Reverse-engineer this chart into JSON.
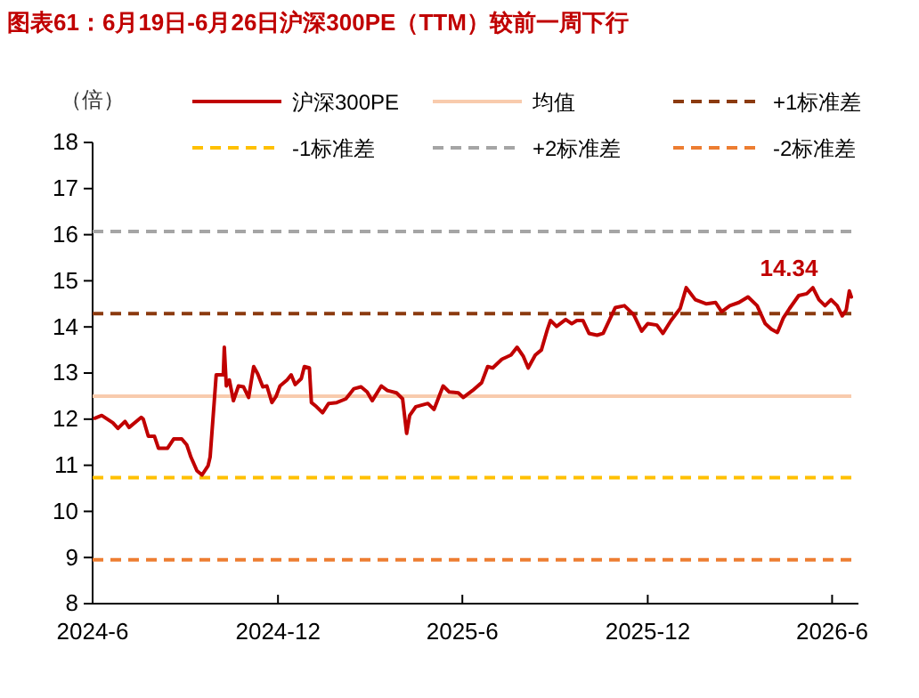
{
  "chart_data": {
    "type": "line",
    "title": "图表61：6月19日-6月26日沪深300PE（TTM）较前一周下行",
    "ylabel": "（倍）",
    "xlim": [
      "2024-06-01",
      "2026-06-27"
    ],
    "xticks": [
      {
        "value": "2024-06-01",
        "label": "2024-6"
      },
      {
        "value": "2024-12-01",
        "label": "2024-12"
      },
      {
        "value": "2025-06-01",
        "label": "2025-6"
      },
      {
        "value": "2025-12-01",
        "label": "2025-12"
      },
      {
        "value": "2026-06-01",
        "label": "2026-6"
      }
    ],
    "ylim": [
      8,
      18
    ],
    "yticks": [
      8,
      9,
      10,
      11,
      12,
      13,
      14,
      15,
      16,
      17,
      18
    ],
    "grid": false,
    "legend": "top",
    "line_style": "solid",
    "marker": "none",
    "annotations": [
      "14.34"
    ],
    "ref_lines": [
      {
        "axis": "y",
        "value": 12.5,
        "label": "均值",
        "color": "#f8cbad",
        "line_style": "solid"
      },
      {
        "axis": "y",
        "value": 14.29,
        "label": "+1标准差",
        "color": "#8b3a0f",
        "line_style": "dashed"
      },
      {
        "axis": "y",
        "value": 10.73,
        "label": "-1标准差",
        "color": "#ffc000",
        "line_style": "dashed"
      },
      {
        "axis": "y",
        "value": 16.07,
        "label": "+2标准差",
        "color": "#a5a5a5",
        "line_style": "dashed"
      },
      {
        "axis": "y",
        "value": 8.95,
        "label": "-2标准差",
        "color": "#ed7d31",
        "line_style": "dashed"
      }
    ],
    "series": [
      {
        "name": "沪深300PE",
        "color": "#c00000",
        "x": [
          "2024-06-03",
          "2024-06-10",
          "2024-06-21",
          "2024-06-26",
          "2024-07-03",
          "2024-07-07",
          "2024-07-19",
          "2024-07-21",
          "2024-07-26",
          "2024-08-01",
          "2024-08-05",
          "2024-08-14",
          "2024-08-20",
          "2024-08-28",
          "2024-09-02",
          "2024-09-06",
          "2024-09-12",
          "2024-09-17",
          "2024-09-23",
          "2024-09-25",
          "2024-09-29",
          "2024-10-01",
          "2024-10-08",
          "2024-10-09",
          "2024-10-11",
          "2024-10-14",
          "2024-10-18",
          "2024-10-23",
          "2024-10-28",
          "2024-11-02",
          "2024-11-07",
          "2024-11-11",
          "2024-11-16",
          "2024-11-20",
          "2024-11-25",
          "2024-11-29",
          "2024-12-03",
          "2024-12-10",
          "2024-12-14",
          "2024-12-18",
          "2024-12-24",
          "2024-12-27",
          "2025-01-01",
          "2025-01-03",
          "2025-01-08",
          "2025-01-14",
          "2025-01-20",
          "2025-01-28",
          "2025-02-06",
          "2025-02-14",
          "2025-02-21",
          "2025-02-27",
          "2025-03-04",
          "2025-03-13",
          "2025-03-19",
          "2025-03-28",
          "2025-04-03",
          "2025-04-07",
          "2025-04-10",
          "2025-04-16",
          "2025-04-28",
          "2025-05-04",
          "2025-05-13",
          "2025-05-19",
          "2025-05-28",
          "2025-06-02",
          "2025-06-11",
          "2025-06-20",
          "2025-06-26",
          "2025-07-01",
          "2025-07-10",
          "2025-07-19",
          "2025-07-25",
          "2025-07-31",
          "2025-08-05",
          "2025-08-12",
          "2025-08-18",
          "2025-08-24",
          "2025-08-27",
          "2025-09-02",
          "2025-09-11",
          "2025-09-17",
          "2025-09-22",
          "2025-09-28",
          "2025-10-04",
          "2025-10-12",
          "2025-10-18",
          "2025-10-24",
          "2025-10-30",
          "2025-11-08",
          "2025-11-17",
          "2025-11-25",
          "2025-12-01",
          "2025-12-10",
          "2025-12-16",
          "2025-12-24",
          "2026-01-02",
          "2026-01-08",
          "2026-01-17",
          "2026-01-28",
          "2026-02-06",
          "2026-02-12",
          "2026-02-20",
          "2026-03-01",
          "2026-03-10",
          "2026-03-19",
          "2026-03-27",
          "2026-04-02",
          "2026-04-08",
          "2026-04-14",
          "2026-04-20",
          "2026-04-29",
          "2026-05-07",
          "2026-05-13",
          "2026-05-19",
          "2026-05-25",
          "2026-05-31",
          "2026-06-06",
          "2026-06-11",
          "2026-06-15",
          "2026-06-18",
          "2026-06-20"
        ],
        "values": [
          12.02,
          12.08,
          11.92,
          11.8,
          11.95,
          11.82,
          12.04,
          12.0,
          11.63,
          11.63,
          11.37,
          11.37,
          11.57,
          11.57,
          11.44,
          11.18,
          10.88,
          10.79,
          10.99,
          11.18,
          12.36,
          12.96,
          12.96,
          13.56,
          12.72,
          12.85,
          12.4,
          12.72,
          12.7,
          12.47,
          13.14,
          12.98,
          12.7,
          12.72,
          12.36,
          12.49,
          12.72,
          12.85,
          12.96,
          12.75,
          12.88,
          13.14,
          13.11,
          12.36,
          12.27,
          12.14,
          12.34,
          12.36,
          12.44,
          12.66,
          12.7,
          12.59,
          12.4,
          12.72,
          12.62,
          12.57,
          12.44,
          11.69,
          12.08,
          12.27,
          12.34,
          12.21,
          12.72,
          12.59,
          12.57,
          12.47,
          12.62,
          12.79,
          13.14,
          13.11,
          13.3,
          13.39,
          13.56,
          13.37,
          13.11,
          13.39,
          13.5,
          13.95,
          14.14,
          14.01,
          14.16,
          14.07,
          14.14,
          14.14,
          13.86,
          13.82,
          13.86,
          14.14,
          14.42,
          14.46,
          14.27,
          13.91,
          14.07,
          14.04,
          13.86,
          14.14,
          14.4,
          14.85,
          14.59,
          14.5,
          14.53,
          14.33,
          14.46,
          14.53,
          14.65,
          14.46,
          14.07,
          13.95,
          13.88,
          14.2,
          14.4,
          14.68,
          14.72,
          14.85,
          14.59,
          14.46,
          14.59,
          14.46,
          14.24,
          14.37,
          14.78,
          14.65
        ]
      }
    ]
  }
}
